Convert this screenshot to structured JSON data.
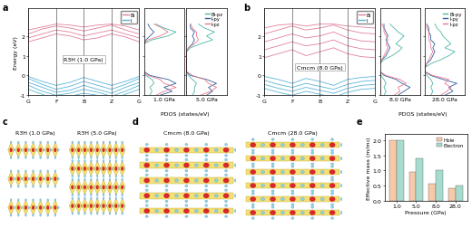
{
  "chart_data": [
    {
      "type": "band",
      "panel": "a",
      "title": "R3̅H (1.0 GPa)",
      "ylabel": "Energy (eV)",
      "x": [
        0,
        0.5,
        1,
        1.5,
        2,
        2.5,
        3,
        3.5,
        4
      ],
      "xlim": [
        0,
        4
      ],
      "xticks": [
        {
          "value": 0,
          "label": "G"
        },
        {
          "value": 1,
          "label": "F"
        },
        {
          "value": 2,
          "label": "B"
        },
        {
          "value": 3,
          "label": "Z"
        },
        {
          "value": 4,
          "label": "G"
        }
      ],
      "ylim": [
        -1,
        3.4
      ],
      "yticks": [
        -1,
        0,
        1,
        2
      ],
      "legend": "upper right",
      "series": [
        {
          "name": "Bi",
          "color": "#e0809a",
          "bands": [
            [
              1.7,
              1.9,
              2.1,
              2.0,
              1.8,
              1.9,
              2.1,
              1.95,
              1.7
            ],
            [
              1.9,
              2.1,
              2.3,
              2.2,
              2.0,
              2.15,
              2.3,
              2.1,
              1.9
            ],
            [
              2.1,
              2.35,
              2.5,
              2.4,
              2.25,
              2.4,
              2.55,
              2.3,
              2.1
            ],
            [
              2.3,
              2.45,
              2.6,
              2.55,
              2.45,
              2.55,
              2.6,
              2.5,
              2.3
            ]
          ]
        },
        {
          "name": "I",
          "color": "#5ab4d8",
          "bands": [
            [
              -0.05,
              -0.3,
              -0.5,
              -0.35,
              -0.1,
              -0.3,
              -0.5,
              -0.3,
              -0.05
            ],
            [
              -0.15,
              -0.45,
              -0.7,
              -0.55,
              -0.3,
              -0.5,
              -0.7,
              -0.45,
              -0.15
            ],
            [
              -0.35,
              -0.6,
              -0.85,
              -0.75,
              -0.5,
              -0.7,
              -0.9,
              -0.6,
              -0.35
            ],
            [
              -0.5,
              -0.8,
              -1.0,
              -0.9,
              -0.7,
              -0.85,
              -1.05,
              -0.8,
              -0.5
            ],
            [
              -0.7,
              -0.95,
              -1.2,
              -1.05,
              -0.9,
              -1.0,
              -1.2,
              -0.95,
              -0.7
            ]
          ]
        }
      ]
    },
    {
      "type": "pdos",
      "xlabel": "PDOS (states/eV)",
      "annotation": "1.0 GPa",
      "orientation": "horizontal",
      "tick_labels": false,
      "xlim": [
        0,
        2
      ],
      "ylim": [
        -1,
        3.4
      ],
      "yticks": [
        -1,
        0,
        1,
        2
      ],
      "y": [
        -1.0,
        -0.8,
        -0.6,
        -0.4,
        -0.2,
        0.0,
        0.2,
        0.4,
        0.6,
        0.8,
        1.0,
        1.2,
        1.4,
        1.6,
        1.8,
        2.0,
        2.2,
        2.4,
        2.6
      ],
      "series": [
        {
          "name": "Bi-pz",
          "color": "#4db6a4",
          "values": [
            0.3,
            0.4,
            0.3,
            0.5,
            0.4,
            0.1,
            0,
            0,
            0,
            0,
            0,
            0,
            0,
            0,
            0.4,
            1.2,
            1.6,
            1.0,
            0.6
          ]
        },
        {
          "name": "I-py",
          "color": "#2f5d9e",
          "values": [
            0.8,
            1.4,
            1.0,
            1.6,
            1.2,
            0.3,
            0,
            0,
            0,
            0,
            0,
            0,
            0,
            0,
            0.1,
            0.3,
            0.5,
            0.3,
            0.2
          ]
        },
        {
          "name": "I-pz",
          "color": "#e9788f",
          "values": [
            0.6,
            1.0,
            1.6,
            1.0,
            0.8,
            0.2,
            0,
            0,
            0,
            0,
            0,
            0,
            0,
            0,
            0.2,
            0.8,
            1.2,
            0.9,
            0.5
          ]
        }
      ]
    },
    {
      "type": "pdos",
      "annotation": "5.0 GPa",
      "orientation": "horizontal",
      "tick_labels": false,
      "legend": "upper right",
      "xlim": [
        0,
        2
      ],
      "ylim": [
        -1,
        3.4
      ],
      "yticks": [
        -1,
        0,
        1,
        2
      ],
      "y": [
        -1.0,
        -0.8,
        -0.6,
        -0.4,
        -0.2,
        0.0,
        0.2,
        0.4,
        0.6,
        0.8,
        1.0,
        1.2,
        1.4,
        1.6,
        1.8,
        2.0,
        2.2,
        2.4,
        2.6
      ],
      "series": [
        {
          "name": "Bi-pz",
          "color": "#4db6a4",
          "values": [
            0.3,
            0.4,
            0.4,
            0.5,
            0.3,
            0.1,
            0,
            0,
            0,
            0,
            0,
            0,
            0.2,
            0.7,
            1.3,
            1.0,
            1.4,
            0.9,
            0.6
          ]
        },
        {
          "name": "I-py",
          "color": "#2f5d9e",
          "values": [
            1.0,
            1.3,
            1.1,
            1.5,
            1.0,
            0.2,
            0,
            0,
            0,
            0,
            0,
            0,
            0.1,
            0.3,
            0.4,
            0.3,
            0.4,
            0.2,
            0.2
          ]
        },
        {
          "name": "I-pz",
          "color": "#e9788f",
          "values": [
            0.7,
            1.2,
            1.5,
            1.1,
            0.9,
            0.3,
            0,
            0,
            0,
            0,
            0,
            0,
            0.1,
            0.4,
            0.6,
            0.5,
            0.5,
            0.3,
            0.2
          ]
        }
      ]
    },
    {
      "type": "band",
      "panel": "b",
      "title": "Cmcm (8.0 GPa)",
      "x": [
        0,
        0.5,
        1,
        1.5,
        2,
        2.5,
        3,
        3.5,
        4
      ],
      "xlim": [
        0,
        4
      ],
      "xticks": [
        {
          "value": 0,
          "label": "G"
        },
        {
          "value": 1,
          "label": "F"
        },
        {
          "value": 2,
          "label": "B"
        },
        {
          "value": 3,
          "label": "Z"
        },
        {
          "value": 4,
          "label": "G"
        }
      ],
      "ylim": [
        -1,
        3.4
      ],
      "yticks": [
        -1,
        0,
        1,
        2
      ],
      "legend": "upper right",
      "series": [
        {
          "name": "Bi",
          "color": "#e0809a",
          "bands": [
            [
              0.9,
              1.1,
              1.3,
              1.0,
              1.2,
              1.4,
              1.1,
              0.95,
              0.9
            ],
            [
              1.3,
              1.5,
              1.7,
              1.5,
              1.6,
              1.8,
              1.5,
              1.35,
              1.3
            ],
            [
              1.7,
              1.9,
              2.1,
              1.9,
              2.0,
              2.2,
              1.9,
              1.75,
              1.7
            ],
            [
              2.1,
              2.3,
              2.5,
              2.3,
              2.4,
              2.55,
              2.3,
              2.15,
              2.1
            ],
            [
              2.4,
              2.55,
              2.6,
              2.5,
              2.6,
              2.6,
              2.5,
              2.45,
              2.4
            ]
          ]
        },
        {
          "name": "I",
          "color": "#5ab4d8",
          "bands": [
            [
              -0.05,
              -0.2,
              -0.4,
              -0.15,
              -0.3,
              -0.5,
              -0.2,
              -0.1,
              -0.05
            ],
            [
              -0.25,
              -0.45,
              -0.6,
              -0.4,
              -0.55,
              -0.7,
              -0.45,
              -0.3,
              -0.25
            ],
            [
              -0.45,
              -0.65,
              -0.8,
              -0.6,
              -0.75,
              -0.9,
              -0.65,
              -0.5,
              -0.45
            ],
            [
              -0.65,
              -0.85,
              -1.0,
              -0.8,
              -0.95,
              -1.1,
              -0.85,
              -0.7,
              -0.65
            ]
          ]
        }
      ]
    },
    {
      "type": "pdos",
      "xlabel": "PDOS (states/eV)",
      "annotation": "8.0 GPa",
      "orientation": "horizontal",
      "tick_labels": false,
      "xlim": [
        0,
        2
      ],
      "ylim": [
        -1,
        3.4
      ],
      "yticks": [
        -1,
        0,
        1,
        2
      ],
      "y": [
        -1.0,
        -0.8,
        -0.6,
        -0.4,
        -0.2,
        0.0,
        0.2,
        0.4,
        0.6,
        0.8,
        1.0,
        1.2,
        1.4,
        1.6,
        1.8,
        2.0,
        2.2,
        2.4,
        2.6
      ],
      "series": [
        {
          "name": "Bi-py",
          "color": "#4db6a4",
          "values": [
            0.2,
            0.3,
            0.2,
            0.3,
            0.2,
            0.05,
            0,
            0,
            0,
            0.2,
            0.6,
            0.9,
            1.1,
            0.8,
            1.0,
            1.2,
            0.9,
            0.7,
            0.5
          ]
        },
        {
          "name": "I-py",
          "color": "#2f5d9e",
          "values": [
            0.9,
            1.2,
            1.5,
            1.1,
            0.8,
            0.2,
            0,
            0,
            0,
            0.1,
            0.3,
            0.4,
            0.5,
            0.4,
            0.3,
            0.4,
            0.3,
            0.2,
            0.2
          ]
        },
        {
          "name": "I-pz",
          "color": "#e9788f",
          "values": [
            0.7,
            1.0,
            0.9,
            1.3,
            1.0,
            0.3,
            0,
            0,
            0,
            0.1,
            0.2,
            0.3,
            0.4,
            0.3,
            0.4,
            0.3,
            0.2,
            0.2,
            0.1
          ]
        }
      ]
    },
    {
      "type": "pdos",
      "annotation": "28.0 GPa",
      "orientation": "horizontal",
      "tick_labels": false,
      "legend": "upper right",
      "xlim": [
        0,
        2
      ],
      "ylim": [
        -1,
        3.4
      ],
      "yticks": [
        -1,
        0,
        1,
        2
      ],
      "y": [
        -1.0,
        -0.8,
        -0.6,
        -0.4,
        -0.2,
        0.0,
        0.2,
        0.4,
        0.6,
        0.8,
        1.0,
        1.2,
        1.4,
        1.6,
        1.8,
        2.0,
        2.2,
        2.4,
        2.6
      ],
      "series": [
        {
          "name": "Bi-py",
          "color": "#4db6a4",
          "values": [
            0.3,
            0.4,
            0.3,
            0.4,
            0.3,
            0.1,
            0,
            0,
            0.3,
            0.8,
            1.2,
            1.5,
            1.0,
            1.3,
            1.1,
            0.9,
            0.8,
            0.6,
            0.5
          ]
        },
        {
          "name": "I-py",
          "color": "#2f5d9e",
          "values": [
            1.0,
            1.4,
            1.2,
            1.6,
            0.9,
            0.3,
            0,
            0,
            0.1,
            0.3,
            0.4,
            0.5,
            0.4,
            0.5,
            0.3,
            0.3,
            0.2,
            0.2,
            0.1
          ]
        },
        {
          "name": "I-pz",
          "color": "#e9788f",
          "values": [
            0.8,
            1.1,
            1.3,
            1.0,
            1.2,
            0.4,
            0,
            0,
            0.1,
            0.2,
            0.3,
            0.4,
            0.3,
            0.3,
            0.2,
            0.2,
            0.2,
            0.1,
            0.1
          ]
        }
      ]
    },
    {
      "type": "bar",
      "panel": "e",
      "xlabel": "Pressure (GPa)",
      "ylabel": "Effective mass (m/m₀)",
      "categories": [
        "1.0",
        "5.0",
        "8.0",
        "28.0"
      ],
      "ylim": [
        0,
        2.2
      ],
      "yticks": [
        0.0,
        0.5,
        1.0,
        1.5,
        2.0
      ],
      "legend": "upper right",
      "series": [
        {
          "name": "Hole",
          "color": "#f6c9a8",
          "values": [
            2.0,
            0.95,
            0.55,
            0.4
          ]
        },
        {
          "name": "Electron",
          "color": "#a6dccd",
          "values": [
            2.0,
            1.4,
            1.0,
            0.5
          ]
        }
      ]
    }
  ],
  "structures": [
    {
      "panel": "c",
      "labels": [
        "R3̅H (1.0 GPa)",
        "R3̅H (5.0 GPa)"
      ]
    },
    {
      "panel": "d",
      "labels": [
        "Cmcm (8.0 GPa)",
        "Cmcm (28.0 GPa)"
      ]
    }
  ]
}
